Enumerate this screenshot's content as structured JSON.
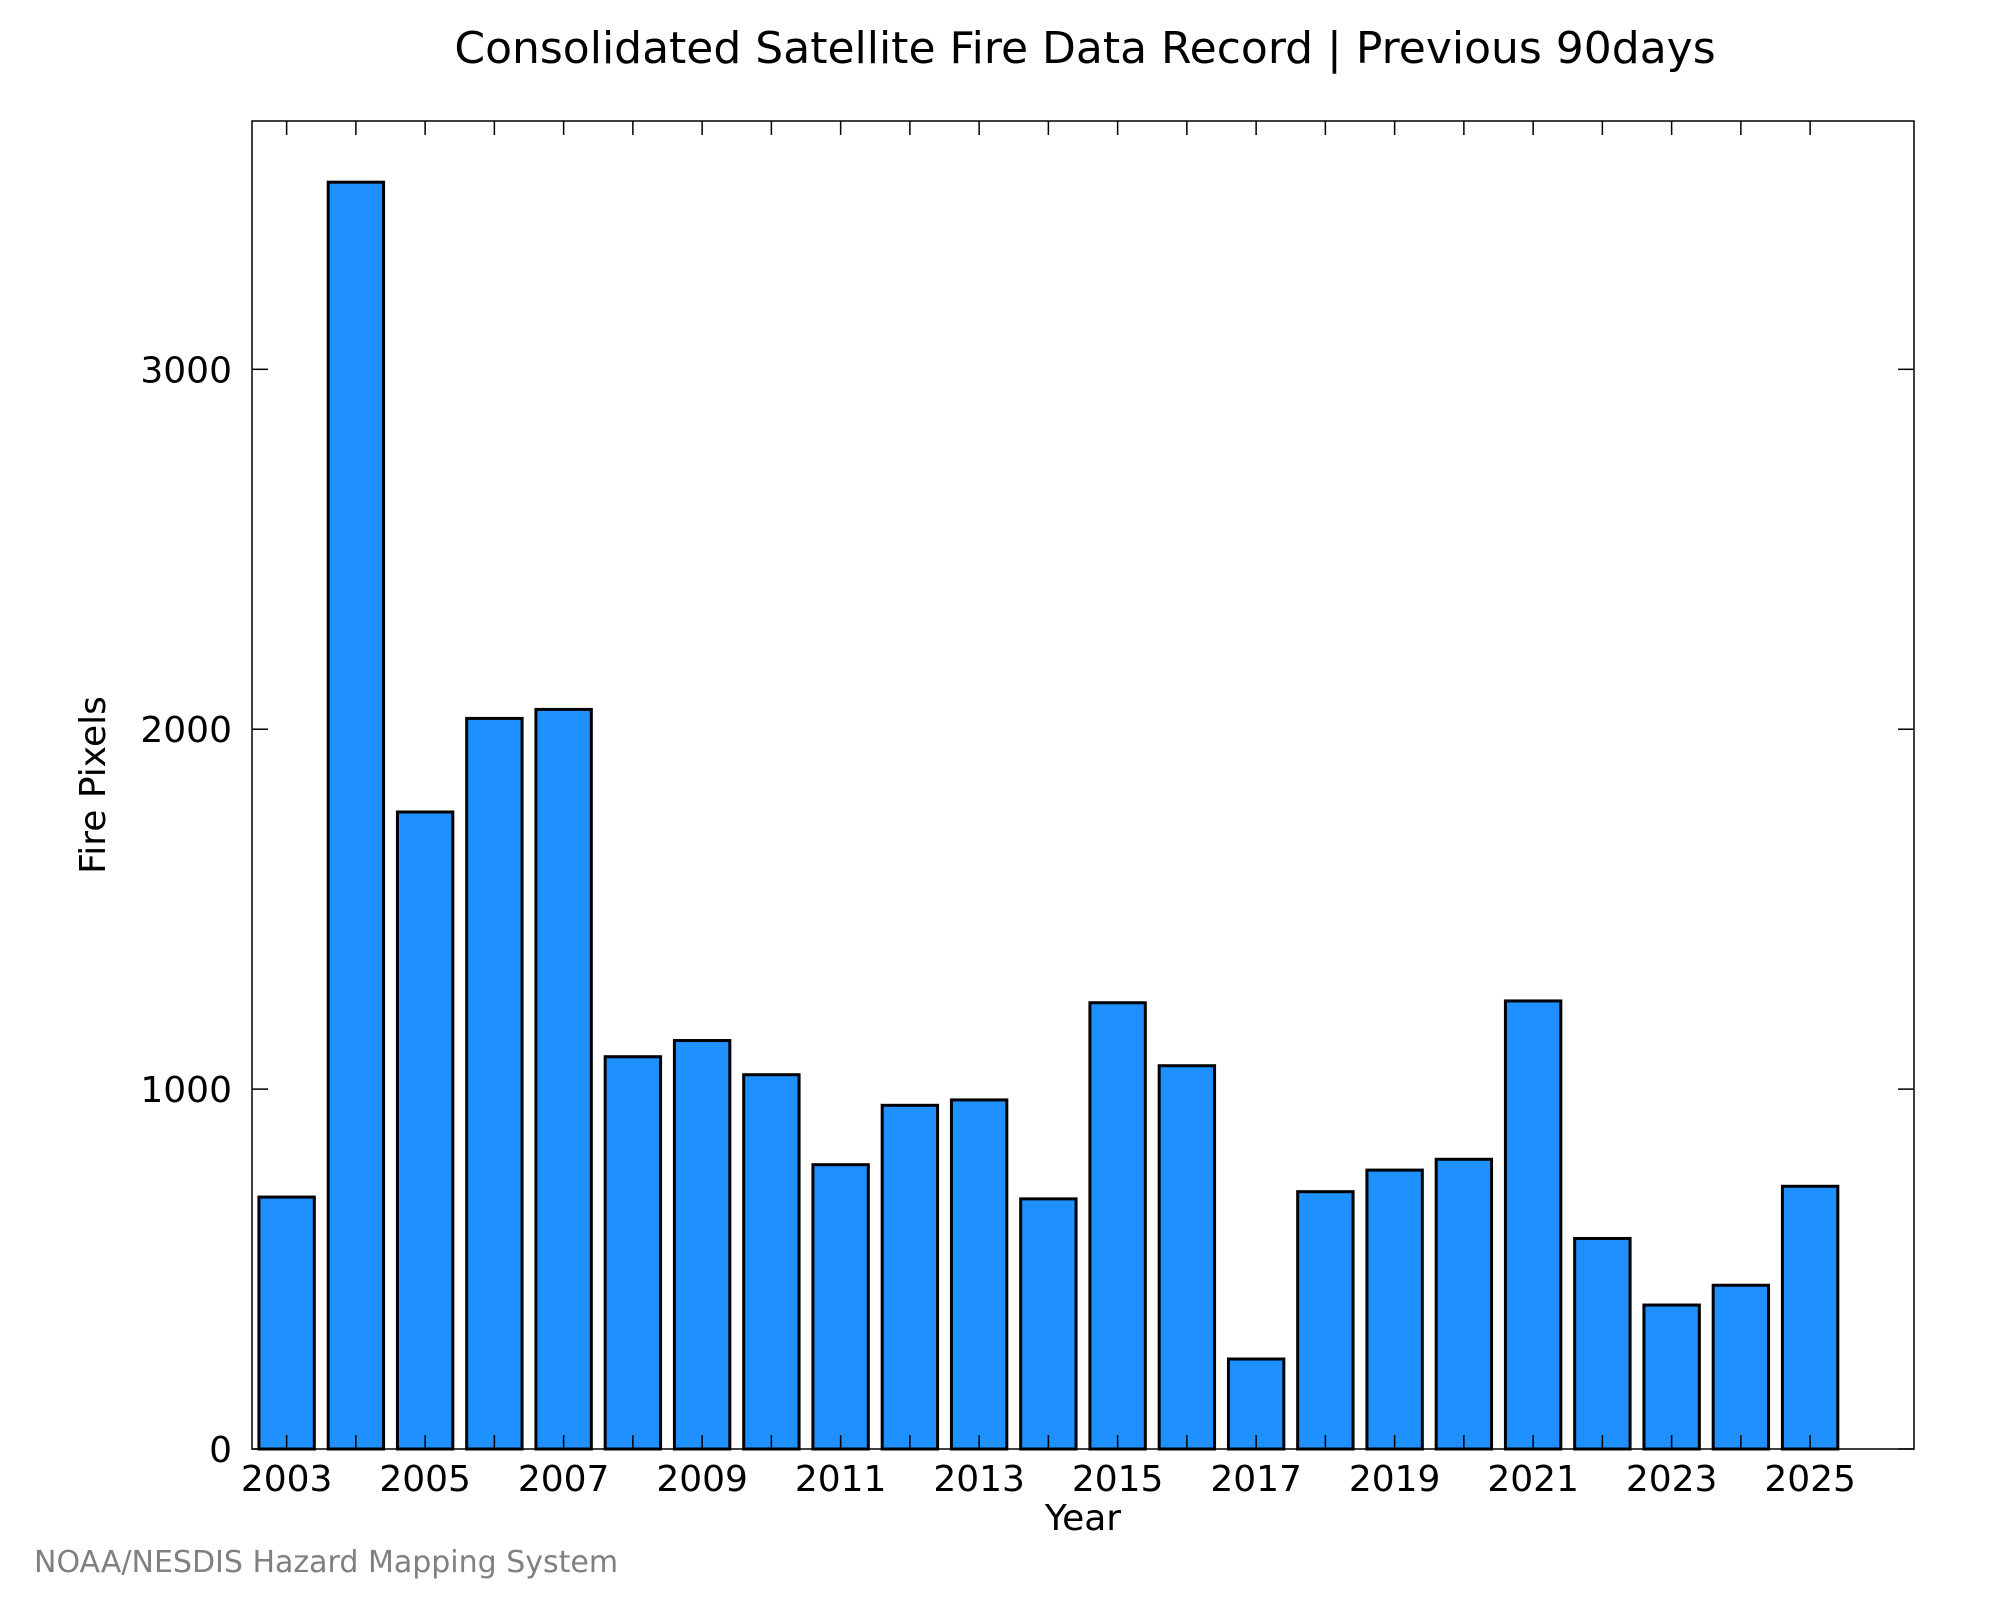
{
  "chart_data": {
    "type": "bar",
    "title": "Consolidated Satellite Fire Data Record | Previous 90days",
    "xlabel": "Year",
    "ylabel": "Fire Pixels",
    "categories": [
      "2003",
      "2004",
      "2005",
      "2006",
      "2007",
      "2008",
      "2009",
      "2010",
      "2011",
      "2012",
      "2013",
      "2014",
      "2015",
      "2016",
      "2017",
      "2018",
      "2019",
      "2020",
      "2021",
      "2022",
      "2023",
      "2024",
      "2025"
    ],
    "values": [
      700,
      3520,
      1770,
      2030,
      2055,
      1090,
      1135,
      1040,
      790,
      955,
      970,
      695,
      1240,
      1065,
      250,
      715,
      775,
      805,
      1245,
      585,
      400,
      455,
      730
    ],
    "x_tick_labels": [
      "2003",
      "2005",
      "2007",
      "2009",
      "2011",
      "2013",
      "2015",
      "2017",
      "2019",
      "2021",
      "2023",
      "2025"
    ],
    "y_ticks": [
      0,
      1000,
      2000,
      3000
    ],
    "y_tick_labels": [
      "0",
      "1000",
      "2000",
      "3000"
    ],
    "ylim": [
      0,
      3690
    ],
    "grid": false,
    "bar_color": "#1e90ff",
    "bar_edge_color": "#000000"
  },
  "footer": {
    "credit": "NOAA/NESDIS Hazard Mapping System"
  }
}
